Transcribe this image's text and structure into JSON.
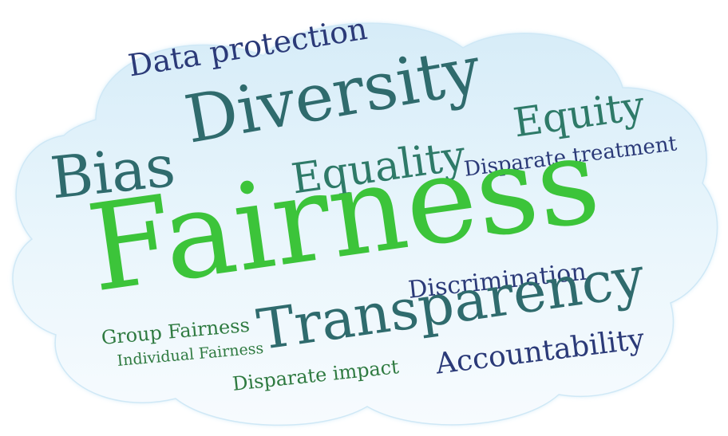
{
  "cloud": {
    "words": [
      {
        "key": "data_protection",
        "text": "Data protection",
        "color": "#2b3a78"
      },
      {
        "key": "diversity",
        "text": "Diversity",
        "color": "#2f6b6d"
      },
      {
        "key": "equity",
        "text": "Equity",
        "color": "#2e7a68"
      },
      {
        "key": "bias",
        "text": "Bias",
        "color": "#2f6b6d"
      },
      {
        "key": "equality",
        "text": "Equality",
        "color": "#2e7a68"
      },
      {
        "key": "disparate_treatment",
        "text": "Disparate treatment",
        "color": "#2b3a78"
      },
      {
        "key": "fairness",
        "text": "Fairness",
        "color": "#3cc43a"
      },
      {
        "key": "discrimination",
        "text": "Discrimination",
        "color": "#2b3a78"
      },
      {
        "key": "transparency",
        "text": "Transparency",
        "color": "#2f6b6d"
      },
      {
        "key": "group_fairness",
        "text": "Group Fairness",
        "color": "#2e7a40"
      },
      {
        "key": "individual_fairness",
        "text": "Individual Fairness",
        "color": "#2e7a40"
      },
      {
        "key": "disparate_impact",
        "text": "Disparate impact",
        "color": "#2e7a40"
      },
      {
        "key": "accountability",
        "text": "Accountability",
        "color": "#2b3a78"
      }
    ]
  }
}
